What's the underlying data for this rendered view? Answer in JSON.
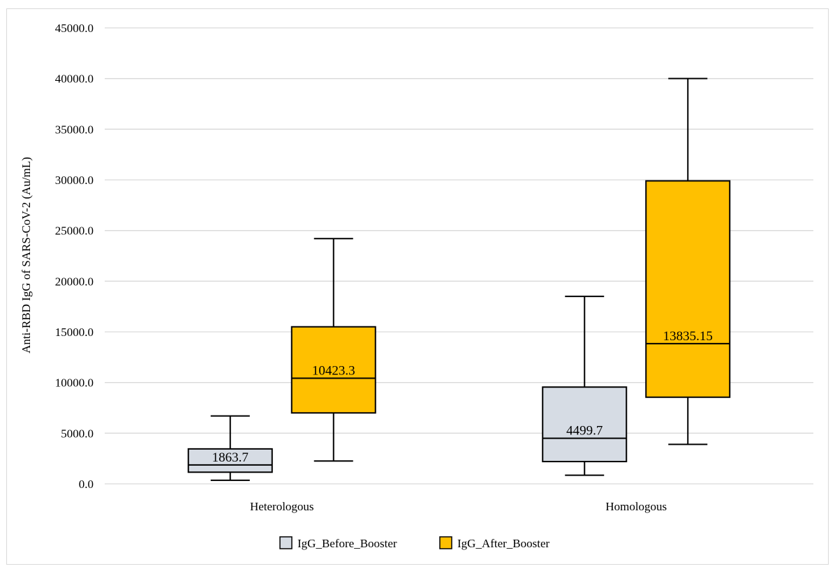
{
  "chart_data": {
    "type": "boxplot",
    "ylabel": "Anti-RBD IgG of SARS-CoV-2  (Au/mL)",
    "xlabel": "",
    "ylim": [
      0,
      45000
    ],
    "ytick_step": 5000,
    "ytick_labels": [
      "0.0",
      "5000.0",
      "10000.0",
      "15000.0",
      "20000.0",
      "25000.0",
      "30000.0",
      "35000.0",
      "40000.0",
      "45000.0"
    ],
    "grid": true,
    "legend_position": "bottom",
    "categories": [
      "Heterologous",
      "Homologous"
    ],
    "series": [
      {
        "name": "IgG_Before_Booster",
        "color": "#d6dce4",
        "boxes": [
          {
            "min": 350,
            "q1": 1150,
            "median": 1863.7,
            "q3": 3450,
            "max": 6700,
            "median_label": "1863.7"
          },
          {
            "min": 850,
            "q1": 2200,
            "median": 4499.7,
            "q3": 9550,
            "max": 18500,
            "median_label": "4499.7"
          }
        ]
      },
      {
        "name": "IgG_After_Booster",
        "color": "#ffc000",
        "boxes": [
          {
            "min": 2250,
            "q1": 7000,
            "median": 10423.3,
            "q3": 15500,
            "max": 24200,
            "median_label": "10423.3"
          },
          {
            "min": 3900,
            "q1": 8550,
            "median": 13835.15,
            "q3": 29900,
            "max": 40000,
            "median_label": "13835.15"
          }
        ]
      }
    ]
  }
}
